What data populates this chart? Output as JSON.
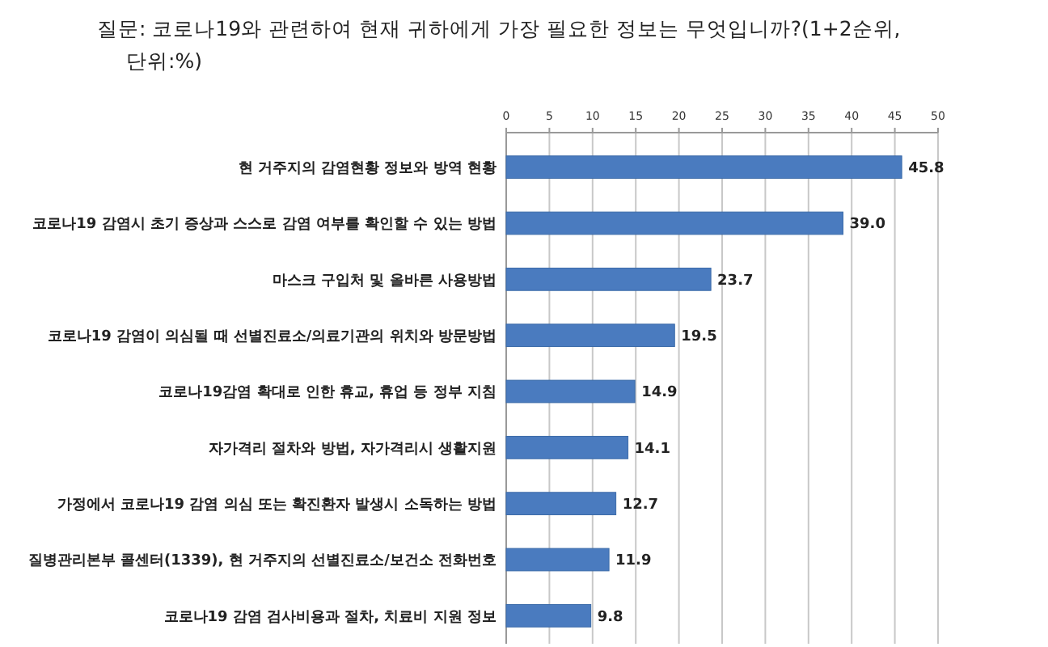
{
  "chart_data": {
    "type": "bar",
    "orientation": "horizontal",
    "title": "질문: 코로나19와 관련하여 현재 귀하에게 가장 필요한 정보는 무엇입니까?(1+2순위, 단위:%)",
    "categories": [
      "현 거주지의 감염현황 정보와 방역 현황",
      "코로나19 감염시 초기 증상과 스스로 감염 여부를 확인할 수 있는 방법",
      "마스크 구입처 및 올바른 사용방법",
      "코로나19 감염이 의심될 때 선별진료소/의료기관의 위치와 방문방법",
      "코로나19감염 확대로 인한 휴교, 휴업 등 정부 지침",
      "자가격리 절차와 방법, 자가격리시 생활지원",
      "가정에서 코로나19 감염 의심 또는 확진환자 발생시 소독하는 방법",
      "질병관리본부 콜센터(1339), 현 거주지의 선별진료소/보건소 전화번호",
      "코로나19 감염 검사비용과 절차, 치료비 지원 정보"
    ],
    "values": [
      45.8,
      39.0,
      23.7,
      19.5,
      14.9,
      14.1,
      12.7,
      11.9,
      9.8
    ],
    "color": "#4a7bbf",
    "xlim": [
      0,
      50
    ],
    "xticks": [
      0,
      5,
      10,
      15,
      20,
      25,
      30,
      35,
      40,
      45,
      50
    ],
    "grid": "x",
    "value_labels": [
      "45.8",
      "39.0",
      "23.7",
      "19.5",
      "14.9",
      "14.1",
      "12.7",
      "11.9",
      "9.8"
    ]
  }
}
